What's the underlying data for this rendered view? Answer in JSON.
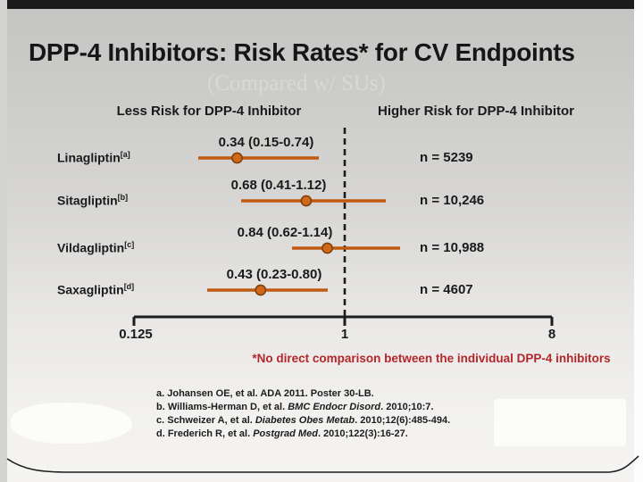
{
  "slide": {
    "title": "DPP-4 Inhibitors: Risk Rates* for CV Endpoints",
    "subtitle": "(Compared w/ SUs)",
    "footnote": "*No direct comparison between the individual DPP-4 inhibitors",
    "references": [
      {
        "pre": "a. Johansen OE, et al. ADA 2011. Poster 30-LB.",
        "italic": "",
        "post": ""
      },
      {
        "pre": "b. Williams-Herman D, et al. ",
        "italic": "BMC Endocr Disord",
        "post": ". 2010;10:7."
      },
      {
        "pre": "c. Schweizer A, et al. ",
        "italic": "Diabetes Obes Metab",
        "post": ". 2010;12(6):485-494."
      },
      {
        "pre": "d. Frederich R, et al. ",
        "italic": "Postgrad Med",
        "post": ". 2010;122(3):16-27."
      }
    ]
  },
  "chart_data": {
    "type": "scatter",
    "subtype": "forest_plot",
    "title": "DPP-4 Inhibitors: Risk Rates* for CV Endpoints",
    "subtitle": "(Compared w/ SUs)",
    "left_header": "Less Risk for DPP-4 Inhibitor",
    "right_header": "Higher Risk for DPP-4 Inhibitor",
    "x_axis": {
      "scale": "log",
      "range": [
        0.125,
        8
      ],
      "ticks": [
        "0.125",
        "1",
        "8"
      ],
      "reference_line": 1
    },
    "rows": [
      {
        "drug": "Linagliptin",
        "ref_mark": "[a]",
        "estimate": 0.34,
        "ci_low": 0.15,
        "ci_high": 0.74,
        "value_label": "0.34 (0.15-0.74)",
        "n_label": "n = 5239"
      },
      {
        "drug": "Sitagliptin",
        "ref_mark": "[b]",
        "estimate": 0.68,
        "ci_low": 0.41,
        "ci_high": 1.12,
        "value_label": "0.68 (0.41-1.12)",
        "n_label": "n = 10,246"
      },
      {
        "drug": "Vildagliptin",
        "ref_mark": "[c]",
        "estimate": 0.84,
        "ci_low": 0.62,
        "ci_high": 1.14,
        "value_label": "0.84 (0.62-1.14)",
        "n_label": "n = 10,988"
      },
      {
        "drug": "Saxagliptin",
        "ref_mark": "[d]",
        "estimate": 0.43,
        "ci_low": 0.23,
        "ci_high": 0.8,
        "value_label": "0.43 (0.23-0.80)",
        "n_label": "n = 4607"
      }
    ],
    "legend": "none",
    "grid": false,
    "colors": {
      "marker_fill": "#D06818",
      "marker_stroke": "#7F420D",
      "ci_line": "#C05A10",
      "footnote_red": "#B4262A",
      "axis": "#1C1C1C"
    }
  }
}
